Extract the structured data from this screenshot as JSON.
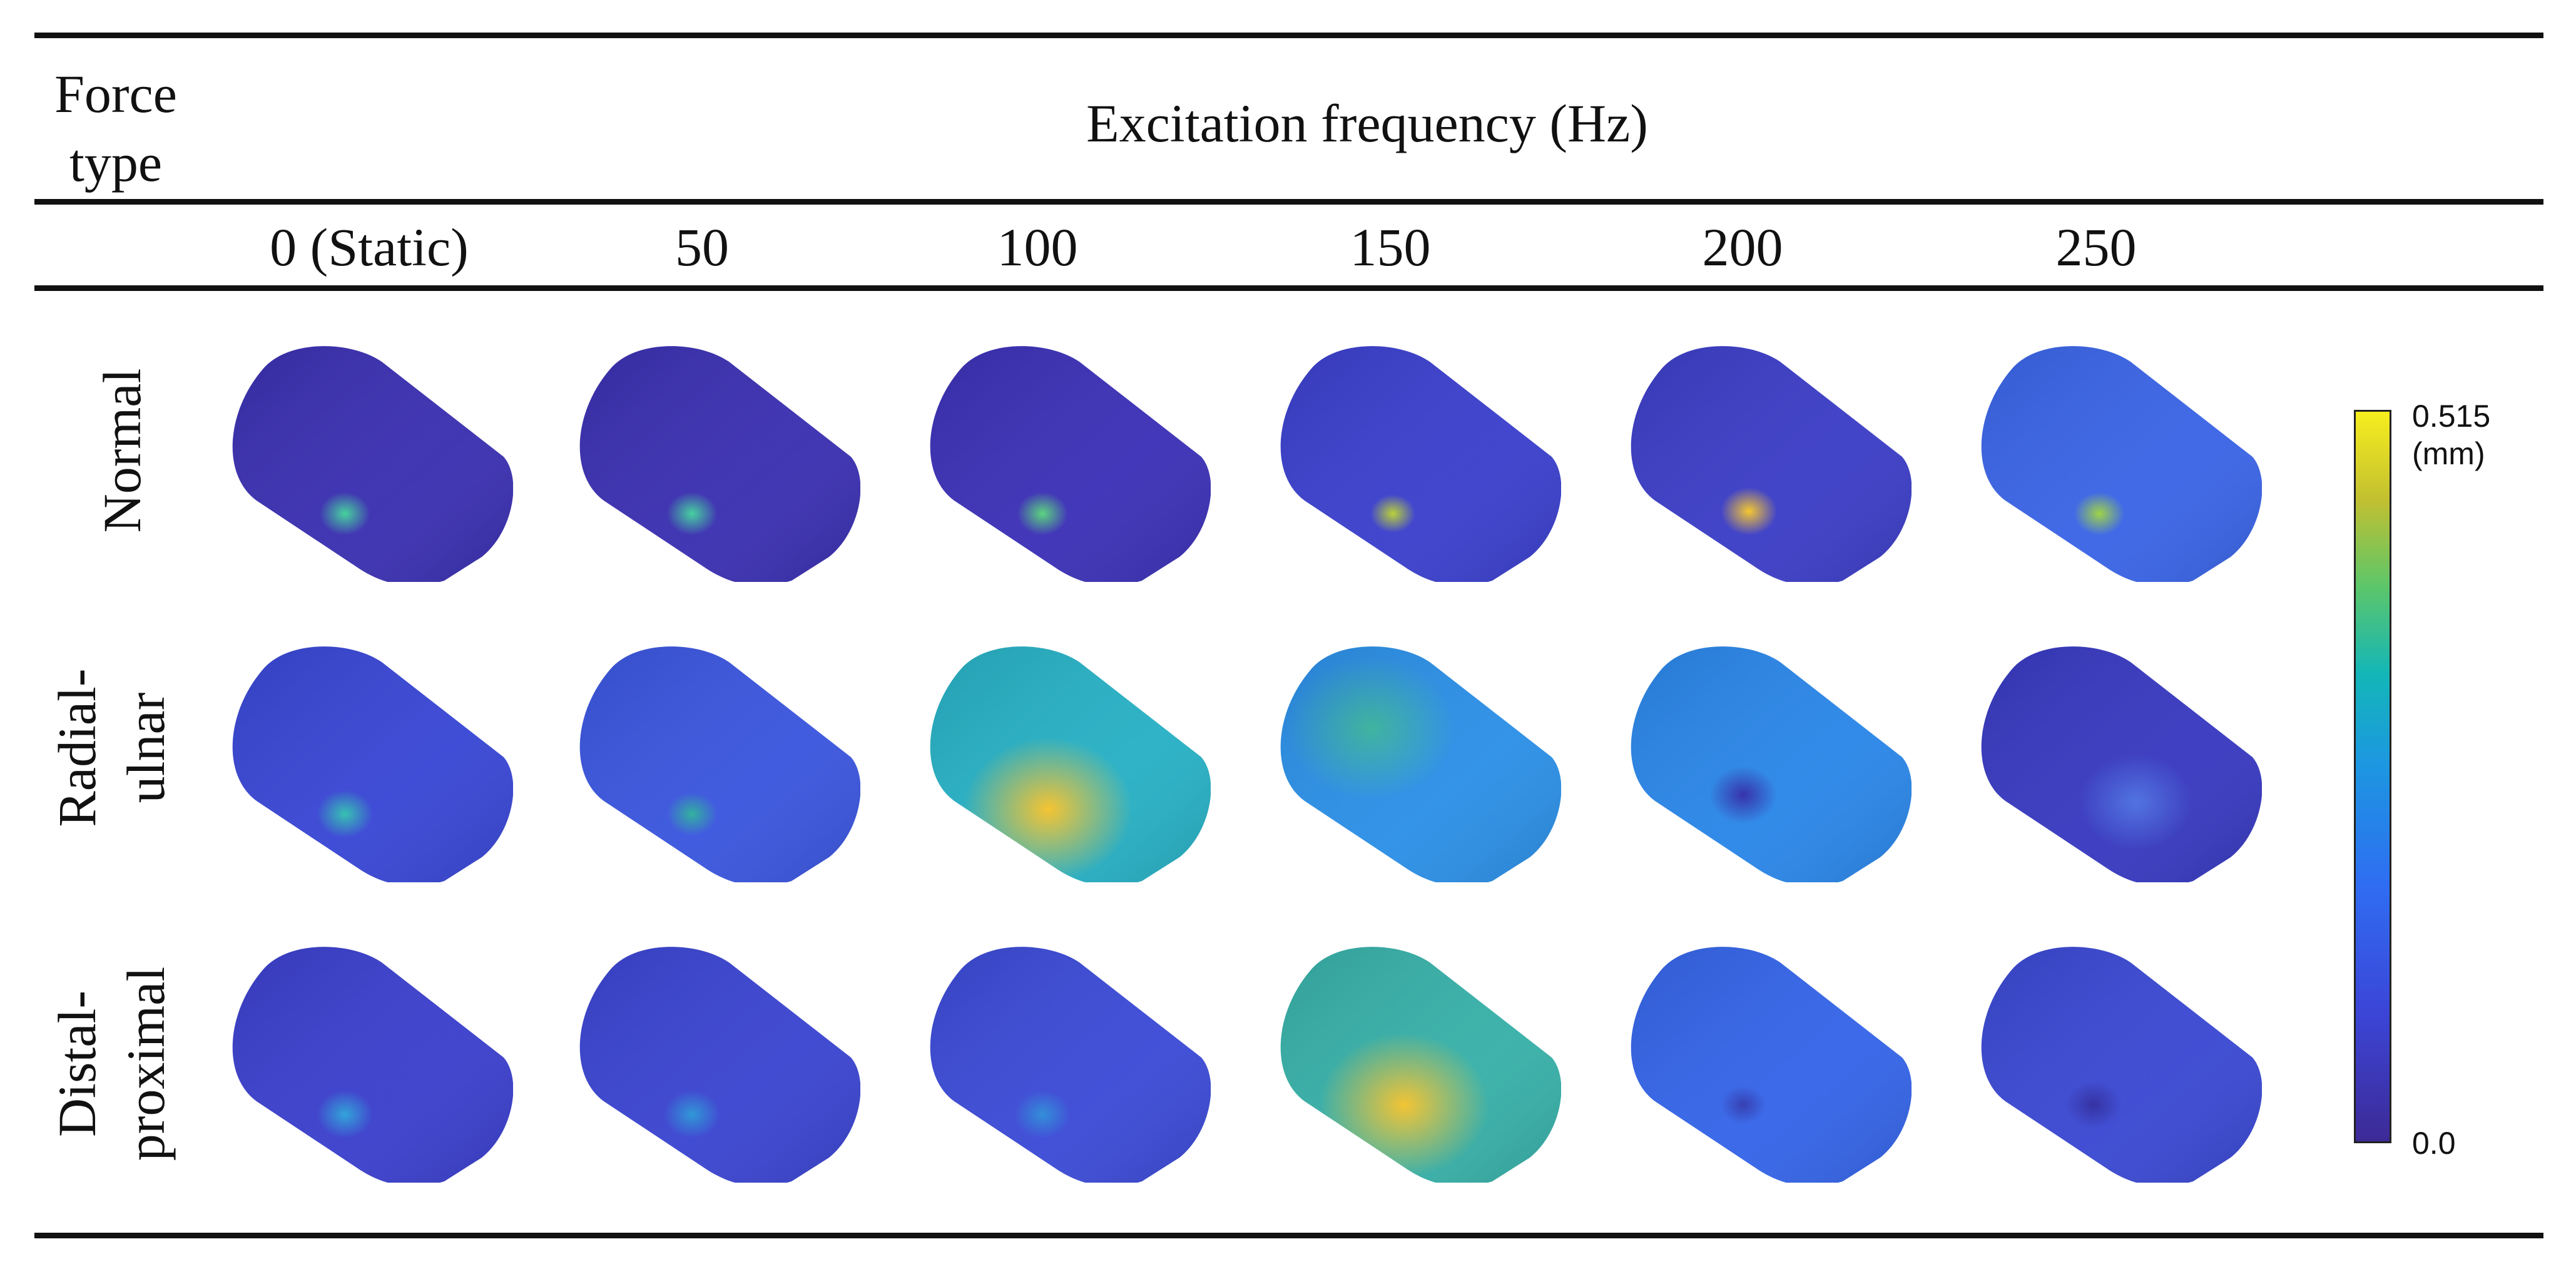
{
  "header": {
    "force_type_line1": "Force",
    "force_type_line2": "type",
    "frequency_title": "Excitation frequency (Hz)"
  },
  "frequencies": [
    "0 (Static)",
    "50",
    "100",
    "150",
    "200",
    "250"
  ],
  "rows": [
    {
      "label_lines": [
        "Normal"
      ]
    },
    {
      "label_lines": [
        "Radial-",
        "ulnar"
      ]
    },
    {
      "label_lines": [
        "Distal-",
        "proximal"
      ]
    }
  ],
  "colorbar": {
    "max_label": "0.515",
    "unit_label": "(mm)",
    "min_label": "0.0",
    "colors": [
      "#3d2a96",
      "#3b46d8",
      "#2f6df2",
      "#1c98e0",
      "#13b6b8",
      "#5cc66a",
      "#c2c030",
      "#f7ee1e"
    ]
  },
  "cells": [
    [
      {
        "base": "#3a2fb0",
        "hot": "#3fd09a",
        "hotx": 0.4,
        "hoty": 0.7,
        "hotr": 0.09
      },
      {
        "base": "#3a2fb0",
        "hot": "#3fcf9c",
        "hotx": 0.4,
        "hoty": 0.7,
        "hotr": 0.09
      },
      {
        "base": "#3b30b6",
        "hot": "#55d37a",
        "hotx": 0.4,
        "hoty": 0.7,
        "hotr": 0.09
      },
      {
        "base": "#3a3fcc",
        "hot": "#b8d030",
        "hotx": 0.4,
        "hoty": 0.7,
        "hotr": 0.08
      },
      {
        "base": "#3b3dc6",
        "hot": "#f6c528",
        "hotx": 0.42,
        "hoty": 0.69,
        "hotr": 0.1
      },
      {
        "base": "#3a64e6",
        "hot": "#9bd240",
        "hotx": 0.42,
        "hoty": 0.7,
        "hotr": 0.09
      }
    ],
    [
      {
        "base": "#3846d4",
        "hot": "#2fbfb0",
        "hotx": 0.4,
        "hoty": 0.7,
        "hotr": 0.1
      },
      {
        "base": "#3a55de",
        "hot": "#2aae9c",
        "hotx": 0.4,
        "hoty": 0.7,
        "hotr": 0.09
      },
      {
        "base": "#27b0c4",
        "hot": "#f5c22a",
        "hotx": 0.42,
        "hoty": 0.68,
        "hotr": 0.3
      },
      {
        "base": "#2b8fe6",
        "hot": "#3bb6a0",
        "hotx": 0.32,
        "hoty": 0.34,
        "hotr": 0.3
      },
      {
        "base": "#2a86e8",
        "hot": "#2f2aa8",
        "hotx": 0.4,
        "hoty": 0.62,
        "hotr": 0.12
      },
      {
        "base": "#3739c0",
        "hot": "#4a6ee0",
        "hotx": 0.55,
        "hoty": 0.65,
        "hotr": 0.2
      }
    ],
    [
      {
        "base": "#3a3fcc",
        "hot": "#2aa0d8",
        "hotx": 0.4,
        "hoty": 0.7,
        "hotr": 0.1
      },
      {
        "base": "#3a44d0",
        "hot": "#2894d6",
        "hotx": 0.4,
        "hoty": 0.7,
        "hotr": 0.1
      },
      {
        "base": "#3b4ad6",
        "hot": "#2a8ad8",
        "hotx": 0.4,
        "hoty": 0.7,
        "hotr": 0.1
      },
      {
        "base": "#37b0a8",
        "hot": "#f3c22c",
        "hotx": 0.44,
        "hoty": 0.66,
        "hotr": 0.3
      },
      {
        "base": "#3464e8",
        "hot": "#2f38b0",
        "hotx": 0.4,
        "hoty": 0.66,
        "hotr": 0.08
      },
      {
        "base": "#3a48d2",
        "hot": "#2d2aa0",
        "hotx": 0.4,
        "hoty": 0.66,
        "hotr": 0.1
      }
    ]
  ]
}
